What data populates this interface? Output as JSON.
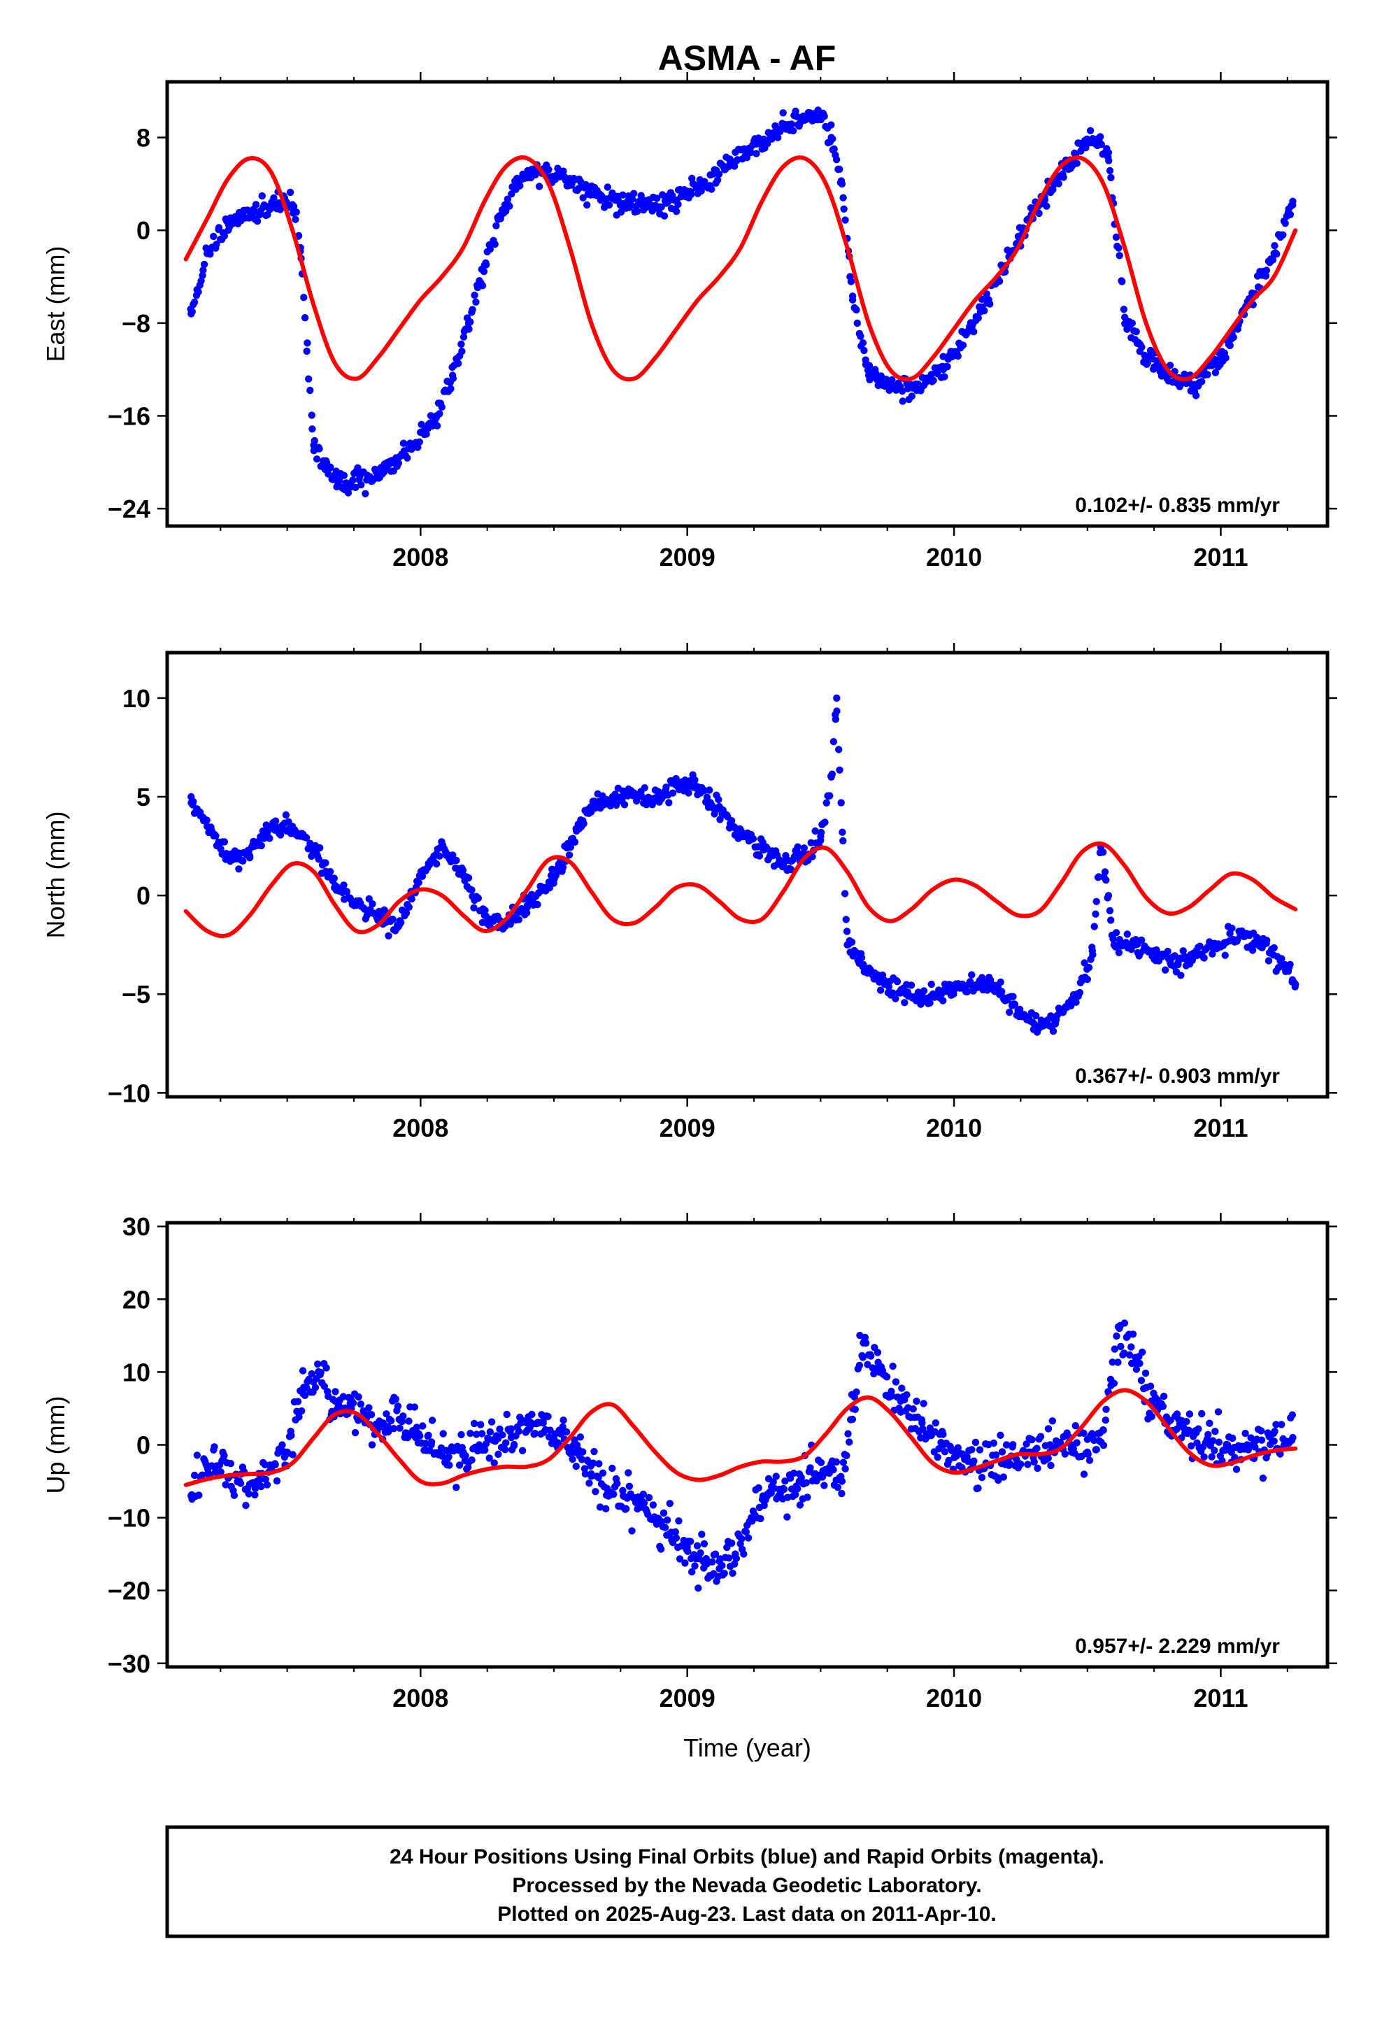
{
  "title": "ASMA - AF",
  "footer": {
    "line1": "24 Hour Positions Using Final Orbits (blue) and Rapid Orbits (magenta).",
    "line2": "Processed by the Nevada Geodetic Laboratory.",
    "line3": "Plotted on 2025-Aug-23. Last data on 2011-Apr-10."
  },
  "colors": {
    "observations": "#0000ff",
    "model": "#ff0000",
    "frame": "#000000"
  },
  "chart_data": [
    {
      "type": "scatter",
      "xlabel": "",
      "ylabel": "East (mm)",
      "xlim": [
        2007.05,
        2011.4
      ],
      "ylim": [
        -25.5,
        12.8
      ],
      "xticks": [
        2008,
        2009,
        2010,
        2011
      ],
      "yticks": [
        -24,
        -16,
        -8,
        0,
        8
      ],
      "rate_label": "0.102+/- 0.835 mm/yr",
      "series": [
        {
          "kind": "observations",
          "style": "dots",
          "x": [
            2007.14,
            2007.2,
            2007.28,
            2007.36,
            2007.44,
            2007.49,
            2007.52,
            2007.55,
            2007.6,
            2007.66,
            2007.72,
            2007.8,
            2007.9,
            2007.98,
            2008.06,
            2008.12,
            2008.18,
            2008.24,
            2008.3,
            2008.38,
            2008.46,
            2008.56,
            2008.66,
            2008.76,
            2008.86,
            2008.96,
            2009.06,
            2009.16,
            2009.26,
            2009.36,
            2009.44,
            2009.5,
            2009.54,
            2009.58,
            2009.62,
            2009.68,
            2009.76,
            2009.86,
            2009.96,
            2010.06,
            2010.16,
            2010.26,
            2010.36,
            2010.44,
            2010.5,
            2010.54,
            2010.58,
            2010.64,
            2010.72,
            2010.8,
            2010.9,
            2011.0,
            2011.1,
            2011.2,
            2011.27
          ],
          "y": [
            -7.2,
            -2.0,
            0.5,
            1.2,
            2.0,
            2.8,
            2.2,
            -1.5,
            -19.0,
            -20.5,
            -21.8,
            -21.5,
            -20.0,
            -18.5,
            -16.0,
            -12.5,
            -8.0,
            -3.0,
            1.0,
            4.5,
            5.2,
            4.0,
            3.0,
            2.3,
            2.2,
            2.6,
            4.0,
            6.0,
            7.5,
            8.8,
            9.5,
            9.8,
            8.0,
            4.0,
            -6.0,
            -12.5,
            -13.5,
            -13.8,
            -12.0,
            -8.5,
            -4.5,
            0.0,
            3.5,
            6.0,
            7.5,
            7.9,
            6.0,
            -7.5,
            -11.0,
            -12.5,
            -13.3,
            -11.0,
            -6.5,
            -2.0,
            2.5
          ]
        },
        {
          "kind": "model",
          "style": "line",
          "x": [
            2007.12,
            2007.2,
            2007.28,
            2007.36,
            2007.44,
            2007.52,
            2007.6,
            2007.68,
            2007.76,
            2007.84,
            2007.92,
            2008.0,
            2008.08,
            2008.16,
            2008.24,
            2008.32,
            2008.4,
            2008.48,
            2008.56,
            2008.64,
            2008.72,
            2008.8,
            2008.88,
            2008.96,
            2009.04,
            2009.12,
            2009.2,
            2009.28,
            2009.36,
            2009.44,
            2009.52,
            2009.6,
            2009.68,
            2009.76,
            2009.84,
            2009.92,
            2010.0,
            2010.08,
            2010.16,
            2010.24,
            2010.32,
            2010.4,
            2010.48,
            2010.56,
            2010.64,
            2010.72,
            2010.8,
            2010.88,
            2010.96,
            2011.04,
            2011.12,
            2011.2,
            2011.28
          ],
          "y": [
            -2.5,
            1.0,
            4.5,
            6.2,
            5.0,
            0.0,
            -6.5,
            -11.5,
            -12.8,
            -11.0,
            -8.5,
            -6.0,
            -4.0,
            -1.5,
            2.5,
            5.5,
            6.2,
            4.0,
            -1.5,
            -8.0,
            -12.0,
            -12.8,
            -11.0,
            -8.5,
            -6.0,
            -4.0,
            -1.5,
            2.5,
            5.5,
            6.2,
            4.0,
            -1.5,
            -8.0,
            -12.0,
            -12.8,
            -11.0,
            -8.5,
            -6.0,
            -4.0,
            -1.5,
            2.5,
            5.5,
            6.2,
            4.0,
            -1.5,
            -8.0,
            -12.0,
            -12.8,
            -11.0,
            -8.5,
            -6.0,
            -4.0,
            0.0
          ]
        }
      ]
    },
    {
      "type": "scatter",
      "xlabel": "",
      "ylabel": "North (mm)",
      "xlim": [
        2007.05,
        2011.4
      ],
      "ylim": [
        -10.2,
        12.3
      ],
      "xticks": [
        2008,
        2009,
        2010,
        2011
      ],
      "yticks": [
        -10,
        -5,
        0,
        5,
        10
      ],
      "rate_label": "0.367+/- 0.903 mm/yr",
      "series": [
        {
          "kind": "observations",
          "style": "dots",
          "x": [
            2007.14,
            2007.2,
            2007.28,
            2007.36,
            2007.44,
            2007.52,
            2007.6,
            2007.68,
            2007.76,
            2007.84,
            2007.92,
            2008.0,
            2008.08,
            2008.16,
            2008.24,
            2008.32,
            2008.4,
            2008.48,
            2008.56,
            2008.64,
            2008.72,
            2008.8,
            2008.88,
            2008.96,
            2009.04,
            2009.12,
            2009.2,
            2009.28,
            2009.36,
            2009.44,
            2009.5,
            2009.54,
            2009.56,
            2009.6,
            2009.66,
            2009.74,
            2009.82,
            2009.9,
            2009.98,
            2010.06,
            2010.14,
            2010.22,
            2010.3,
            2010.38,
            2010.46,
            2010.52,
            2010.55,
            2010.6,
            2010.68,
            2010.76,
            2010.84,
            2010.92,
            2011.0,
            2011.08,
            2011.16,
            2011.24,
            2011.28
          ],
          "y": [
            5.0,
            3.5,
            2.0,
            2.0,
            3.5,
            3.5,
            2.5,
            0.5,
            -0.5,
            -1.0,
            -1.5,
            1.0,
            2.5,
            1.0,
            -1.0,
            -1.5,
            -0.5,
            0.5,
            2.5,
            4.5,
            5.0,
            5.2,
            4.8,
            5.8,
            5.5,
            4.5,
            3.0,
            2.5,
            1.5,
            2.0,
            3.0,
            6.0,
            10.0,
            -2.5,
            -3.5,
            -4.5,
            -5.0,
            -5.2,
            -4.8,
            -4.5,
            -4.5,
            -5.5,
            -6.5,
            -6.5,
            -5.0,
            -3.0,
            2.5,
            -2.5,
            -2.5,
            -3.0,
            -3.5,
            -3.0,
            -2.5,
            -2.0,
            -2.5,
            -3.5,
            -4.5
          ]
        },
        {
          "kind": "model",
          "style": "line",
          "x": [
            2007.12,
            2007.2,
            2007.28,
            2007.36,
            2007.44,
            2007.52,
            2007.6,
            2007.68,
            2007.76,
            2007.84,
            2007.92,
            2008.0,
            2008.08,
            2008.16,
            2008.24,
            2008.32,
            2008.4,
            2008.48,
            2008.56,
            2008.64,
            2008.72,
            2008.8,
            2008.88,
            2008.96,
            2009.04,
            2009.12,
            2009.2,
            2009.28,
            2009.36,
            2009.44,
            2009.52,
            2009.6,
            2009.68,
            2009.76,
            2009.84,
            2009.92,
            2010.0,
            2010.08,
            2010.16,
            2010.24,
            2010.32,
            2010.4,
            2010.48,
            2010.56,
            2010.64,
            2010.72,
            2010.8,
            2010.88,
            2010.96,
            2011.04,
            2011.12,
            2011.2,
            2011.28
          ],
          "y": [
            -0.8,
            -1.8,
            -2.0,
            -1.0,
            0.5,
            1.6,
            1.2,
            -0.5,
            -1.8,
            -1.5,
            -0.3,
            0.3,
            0.0,
            -1.0,
            -1.8,
            -1.2,
            0.3,
            1.8,
            1.7,
            0.2,
            -1.2,
            -1.4,
            -0.6,
            0.4,
            0.5,
            -0.3,
            -1.2,
            -1.2,
            0.2,
            1.9,
            2.4,
            1.2,
            -0.6,
            -1.3,
            -0.7,
            0.3,
            0.8,
            0.5,
            -0.3,
            -1.0,
            -0.8,
            0.6,
            2.2,
            2.6,
            1.5,
            -0.1,
            -0.9,
            -0.6,
            0.3,
            1.1,
            0.8,
            -0.1,
            -0.7
          ]
        }
      ]
    },
    {
      "type": "scatter",
      "xlabel": "Time (year)",
      "ylabel": "Up (mm)",
      "xlim": [
        2007.05,
        2011.4
      ],
      "ylim": [
        -30.5,
        30.5
      ],
      "xticks": [
        2008,
        2009,
        2010,
        2011
      ],
      "yticks": [
        -30,
        -20,
        -10,
        0,
        10,
        20,
        30
      ],
      "rate_label": "0.957+/- 2.229 mm/yr",
      "series": [
        {
          "kind": "observations",
          "style": "dots",
          "x": [
            2007.14,
            2007.2,
            2007.26,
            2007.32,
            2007.38,
            2007.44,
            2007.5,
            2007.56,
            2007.62,
            2007.68,
            2007.74,
            2007.8,
            2007.86,
            2007.92,
            2007.98,
            2008.04,
            2008.1,
            2008.16,
            2008.22,
            2008.28,
            2008.34,
            2008.4,
            2008.46,
            2008.52,
            2008.58,
            2008.64,
            2008.7,
            2008.76,
            2008.82,
            2008.88,
            2008.94,
            2009.0,
            2009.06,
            2009.12,
            2009.18,
            2009.24,
            2009.3,
            2009.36,
            2009.42,
            2009.48,
            2009.54,
            2009.58,
            2009.62,
            2009.66,
            2009.72,
            2009.8,
            2009.88,
            2009.96,
            2010.04,
            2010.12,
            2010.2,
            2010.28,
            2010.36,
            2010.44,
            2010.5,
            2010.56,
            2010.62,
            2010.68,
            2010.74,
            2010.8,
            2010.88,
            2010.96,
            2011.04,
            2011.12,
            2011.2,
            2011.27
          ],
          "y": [
            -7.0,
            -3.0,
            -2.0,
            -5.0,
            -6.0,
            -3.0,
            -1.0,
            7.0,
            10.0,
            6.0,
            5.0,
            4.0,
            3.0,
            3.5,
            2.0,
            0.0,
            -2.0,
            -1.0,
            0.0,
            0.5,
            1.0,
            2.0,
            3.0,
            2.0,
            -1.0,
            -4.0,
            -6.0,
            -7.0,
            -8.0,
            -10.0,
            -12.0,
            -14.0,
            -16.0,
            -17.0,
            -15.0,
            -10.0,
            -7.0,
            -6.0,
            -5.0,
            -4.0,
            -3.0,
            -5.0,
            5.0,
            14.0,
            10.0,
            6.0,
            3.0,
            0.0,
            -2.0,
            -2.5,
            -2.0,
            -1.0,
            0.0,
            0.0,
            -1.0,
            2.0,
            16.0,
            12.0,
            6.0,
            3.0,
            2.0,
            0.0,
            -1.0,
            0.0,
            0.5,
            1.0
          ]
        },
        {
          "kind": "model",
          "style": "line",
          "x": [
            2007.12,
            2007.2,
            2007.28,
            2007.36,
            2007.44,
            2007.52,
            2007.6,
            2007.68,
            2007.76,
            2007.84,
            2007.92,
            2008.0,
            2008.08,
            2008.16,
            2008.24,
            2008.32,
            2008.4,
            2008.48,
            2008.56,
            2008.64,
            2008.72,
            2008.8,
            2008.88,
            2008.96,
            2009.04,
            2009.12,
            2009.2,
            2009.28,
            2009.36,
            2009.44,
            2009.52,
            2009.6,
            2009.68,
            2009.76,
            2009.84,
            2009.92,
            2010.0,
            2010.08,
            2010.16,
            2010.24,
            2010.32,
            2010.4,
            2010.48,
            2010.56,
            2010.64,
            2010.72,
            2010.8,
            2010.88,
            2010.96,
            2011.04,
            2011.12,
            2011.2,
            2011.28
          ],
          "y": [
            -5.5,
            -4.7,
            -4.2,
            -4.0,
            -3.8,
            -2.5,
            1.0,
            4.2,
            4.3,
            1.5,
            -2.0,
            -5.0,
            -5.3,
            -4.2,
            -3.4,
            -3.0,
            -3.0,
            -2.0,
            1.0,
            4.5,
            5.5,
            2.5,
            -1.0,
            -3.8,
            -4.8,
            -4.2,
            -3.0,
            -2.3,
            -2.3,
            -1.5,
            1.5,
            5.0,
            6.5,
            4.5,
            1.0,
            -2.5,
            -3.8,
            -3.2,
            -2.2,
            -1.3,
            -1.3,
            -0.5,
            2.5,
            6.0,
            7.5,
            6.0,
            2.5,
            -1.0,
            -2.8,
            -2.5,
            -1.5,
            -0.8,
            -0.5
          ]
        }
      ]
    }
  ]
}
